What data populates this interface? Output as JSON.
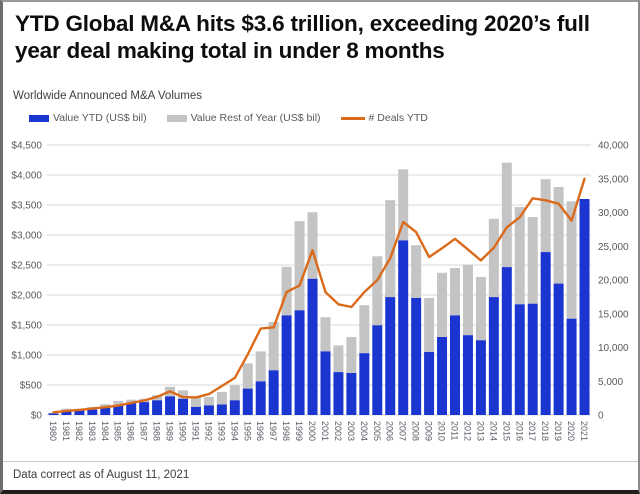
{
  "header": {
    "title": "YTD Global M&A hits $3.6 trillion, exceeding 2020’s full year deal making total in under 8 months",
    "subtitle": "Worldwide Announced M&A Volumes"
  },
  "legend": {
    "items": [
      {
        "label": "Value YTD (US$ bil)",
        "type": "bar",
        "color": "#1b35d0"
      },
      {
        "label": "Value Rest of Year (US$ bil)",
        "type": "bar",
        "color": "#c4c4c4"
      },
      {
        "label": "# Deals YTD",
        "type": "line",
        "color": "#db6a1a"
      }
    ]
  },
  "footer": {
    "note": "Data correct as of August 11, 2021"
  },
  "chart_data": {
    "type": "combo",
    "title": "Worldwide Announced M&A Volumes",
    "categories": [
      "1980",
      "1981",
      "1982",
      "1983",
      "1984",
      "1985",
      "1986",
      "1987",
      "1988",
      "1989",
      "1990",
      "1991",
      "1992",
      "1993",
      "1994",
      "1995",
      "1996",
      "1997",
      "1998",
      "1999",
      "2000",
      "2001",
      "2002",
      "2003",
      "2004",
      "2005",
      "2006",
      "2007",
      "2008",
      "2009",
      "2010",
      "2011",
      "2012",
      "2013",
      "2014",
      "2015",
      "2016",
      "2017",
      "2018",
      "2019",
      "2020",
      "2021"
    ],
    "series": [
      {
        "name": "Value YTD (US$ bil)",
        "type": "bar",
        "stack": "value",
        "axis": "left",
        "color": "#1b35d0",
        "values": [
          25,
          65,
          75,
          90,
          120,
          160,
          200,
          215,
          245,
          310,
          270,
          135,
          160,
          175,
          245,
          440,
          560,
          745,
          1660,
          1745,
          2270,
          1060,
          715,
          700,
          1030,
          1495,
          1965,
          2910,
          1950,
          1050,
          1300,
          1660,
          1330,
          1245,
          1965,
          2465,
          1845,
          1855,
          2715,
          2190,
          1605,
          3600
        ]
      },
      {
        "name": "Value Rest of Year (US$ bil)",
        "type": "bar",
        "stack": "value",
        "axis": "left",
        "color": "#c4c4c4",
        "values": [
          15,
          40,
          30,
          45,
          60,
          75,
          55,
          55,
          85,
          160,
          140,
          165,
          140,
          210,
          250,
          420,
          500,
          805,
          810,
          1485,
          1110,
          570,
          445,
          600,
          800,
          1150,
          1615,
          1185,
          880,
          900,
          1070,
          790,
          1175,
          1055,
          1305,
          1740,
          1620,
          1445,
          1215,
          1610,
          1955,
          0
        ]
      },
      {
        "name": "# Deals YTD",
        "type": "line",
        "axis": "right",
        "color": "#db6a1a",
        "values": [
          400,
          600,
          750,
          950,
          1150,
          1400,
          1800,
          2150,
          2700,
          3500,
          2650,
          2600,
          3100,
          4300,
          5500,
          9000,
          12800,
          13000,
          18200,
          19200,
          24400,
          18200,
          16400,
          16000,
          18200,
          20000,
          23200,
          28600,
          27100,
          23400,
          24700,
          26100,
          24500,
          22900,
          24800,
          27800,
          29300,
          32100,
          31800,
          31300,
          28800,
          35000
        ]
      }
    ],
    "left_axis": {
      "min": 0,
      "max": 4500,
      "step": 500,
      "tick_labels": [
        "$0",
        "$500",
        "$1,000",
        "$1,500",
        "$2,000",
        "$2,500",
        "$3,000",
        "$3,500",
        "$4,000",
        "$4,500"
      ]
    },
    "right_axis": {
      "min": 0,
      "max": 40000,
      "step": 5000,
      "tick_labels": [
        "0",
        "5,000",
        "10,000",
        "15,000",
        "20,000",
        "25,000",
        "30,000",
        "35,000",
        "40,000"
      ]
    },
    "grid": true,
    "legend_position": "top",
    "colors": {
      "grid": "#d9d9d9",
      "axis_text": "#595959",
      "tick_text": "#5a5f66"
    }
  }
}
